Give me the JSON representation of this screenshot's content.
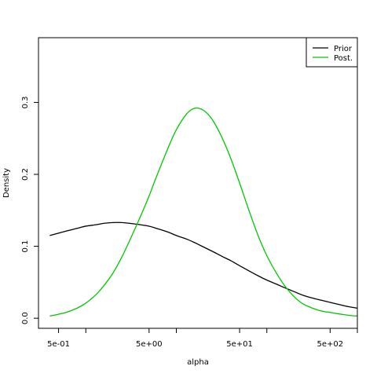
{
  "chart_data": {
    "type": "line",
    "xlabel": "alpha",
    "ylabel": "Density",
    "x_scale": "log",
    "xlim": [
      0.3,
      1000
    ],
    "ylim": [
      -0.014,
      0.39
    ],
    "x_ticks": [
      {
        "value": 0.5,
        "label": "5e-01"
      },
      {
        "value": 1,
        "label": ""
      },
      {
        "value": 5,
        "label": "5e+00"
      },
      {
        "value": 10,
        "label": ""
      },
      {
        "value": 50,
        "label": "5e+01"
      },
      {
        "value": 100,
        "label": ""
      },
      {
        "value": 500,
        "label": "5e+02"
      },
      {
        "value": 1000,
        "label": ""
      }
    ],
    "y_ticks": [
      {
        "value": 0.0,
        "label": "0.0"
      },
      {
        "value": 0.1,
        "label": "0.1"
      },
      {
        "value": 0.2,
        "label": "0.2"
      },
      {
        "value": 0.3,
        "label": "0.3"
      }
    ],
    "grid": false,
    "legend_position": "top-right",
    "series": [
      {
        "name": "Prior",
        "color": "#000000",
        "x": [
          0.4,
          0.6,
          0.8,
          1.0,
          1.3,
          1.6,
          2.0,
          2.5,
          3.0,
          4.0,
          5.0,
          6.0,
          8.0,
          10,
          13,
          16,
          20,
          25,
          32,
          40,
          50,
          63,
          80,
          100,
          130,
          160,
          200,
          250,
          320,
          400,
          500,
          630,
          800,
          1000
        ],
        "values": [
          0.115,
          0.121,
          0.125,
          0.128,
          0.13,
          0.132,
          0.133,
          0.133,
          0.132,
          0.13,
          0.128,
          0.125,
          0.12,
          0.115,
          0.11,
          0.105,
          0.099,
          0.093,
          0.086,
          0.08,
          0.073,
          0.066,
          0.059,
          0.053,
          0.047,
          0.042,
          0.037,
          0.032,
          0.028,
          0.025,
          0.022,
          0.019,
          0.016,
          0.014
        ]
      },
      {
        "name": "Post.",
        "color": "#00c800",
        "x": [
          0.4,
          0.6,
          0.8,
          1.0,
          1.3,
          1.6,
          2.0,
          2.5,
          3.0,
          4.0,
          5.0,
          6.0,
          8.0,
          10,
          13,
          16,
          20,
          25,
          32,
          40,
          50,
          63,
          80,
          100,
          130,
          160,
          200,
          250,
          320,
          400,
          500,
          630,
          800,
          1000
        ],
        "values": [
          0.003,
          0.008,
          0.014,
          0.021,
          0.033,
          0.046,
          0.063,
          0.085,
          0.106,
          0.141,
          0.17,
          0.196,
          0.235,
          0.262,
          0.284,
          0.292,
          0.289,
          0.276,
          0.251,
          0.222,
          0.188,
          0.151,
          0.115,
          0.087,
          0.061,
          0.044,
          0.03,
          0.02,
          0.014,
          0.01,
          0.008,
          0.006,
          0.004,
          0.003
        ]
      }
    ]
  }
}
